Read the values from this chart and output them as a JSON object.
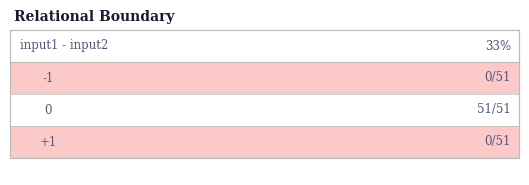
{
  "title": "Relational Boundary",
  "title_fontsize": 10,
  "title_fontweight": "bold",
  "title_color": "#1a1a2e",
  "header_label": "input1 - input2",
  "header_value": "33%",
  "rows": [
    {
      "label": "-1",
      "value": "0/51",
      "bg": "#fcc9c9"
    },
    {
      "label": "0",
      "value": "51/51",
      "bg": "#ffffff"
    },
    {
      "label": "+1",
      "value": "0/51",
      "bg": "#fcc9c9"
    }
  ],
  "text_color": "#555577",
  "table_border_color": "#bbbbbb",
  "row_bg_white": "#ffffff",
  "background_color": "#ffffff",
  "fig_width": 5.29,
  "fig_height": 1.85,
  "dpi": 100
}
